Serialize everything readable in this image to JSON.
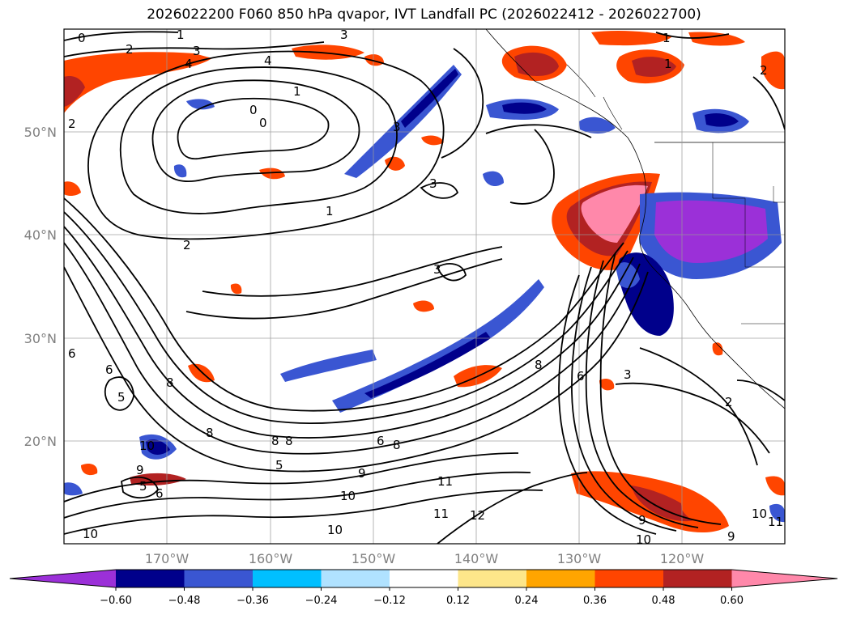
{
  "title": "2026022200 F060 850 hPa qvapor, IVT Landfall PC (2026022412 - 2026022700)",
  "map": {
    "lat_ticks": [
      "50°N",
      "40°N",
      "30°N",
      "20°N"
    ],
    "lon_ticks": [
      "170°W",
      "160°W",
      "150°W",
      "140°W",
      "130°W",
      "120°W"
    ],
    "lat_range": [
      10,
      60
    ],
    "lon_range": [
      -180,
      -110
    ]
  },
  "colorbar": {
    "ticks": [
      "−0.60",
      "−0.48",
      "−0.36",
      "−0.24",
      "−0.12",
      "0.12",
      "0.24",
      "0.36",
      "0.48",
      "0.60"
    ],
    "colors": [
      "#9b30d8",
      "#00008b",
      "#3a56d2",
      "#00bfff",
      "#b0e2ff",
      "#ffffff",
      "#fde68a",
      "#ffa500",
      "#ff4500",
      "#b22222",
      "#ff88aa"
    ]
  },
  "contour_labels": [
    "0",
    "1",
    "2",
    "3",
    "4",
    "5",
    "6",
    "8",
    "9",
    "10",
    "11",
    "12"
  ]
}
